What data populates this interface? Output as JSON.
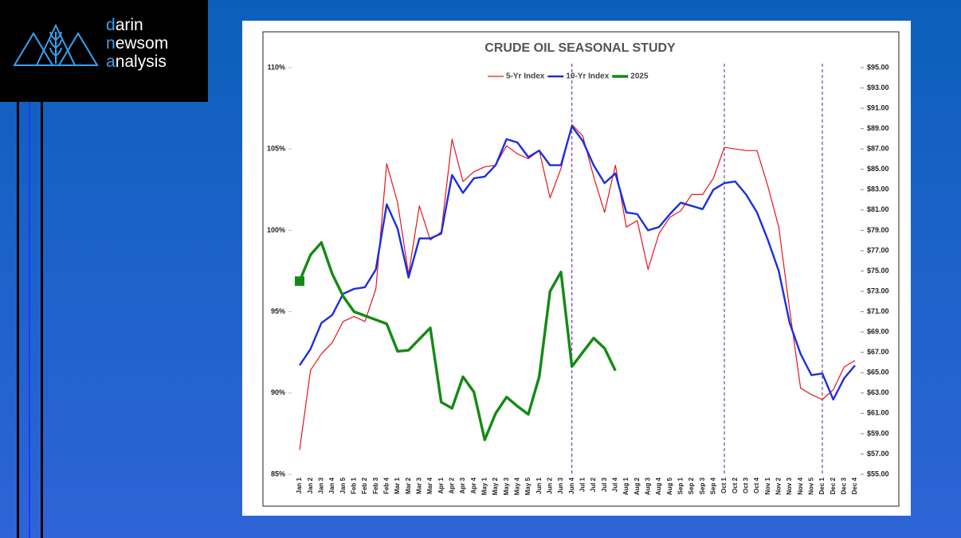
{
  "logo": {
    "lines": [
      "darin",
      "newsom",
      "analysis"
    ]
  },
  "chart_data": {
    "type": "line",
    "title": "CRUDE OIL SEASONAL STUDY",
    "categories": [
      "Jan 1",
      "Jan 2",
      "Jan 3",
      "Jan 4",
      "Jan 5",
      "Feb 1",
      "Feb 2",
      "Feb 3",
      "Feb 4",
      "Mar 1",
      "Mar 2",
      "Mar 3",
      "Mar 4",
      "Apr 1",
      "Apr 2",
      "Apr 3",
      "Apr 4",
      "May 1",
      "May 2",
      "May 3",
      "May 4",
      "May 5",
      "Jun 1",
      "Jun 2",
      "Jun 3",
      "Jun 4",
      "Jul 1",
      "Jul 2",
      "Jul 3",
      "Jul 4",
      "Aug 1",
      "Aug 2",
      "Aug 3",
      "Aug 4",
      "Aug 5",
      "Sep 1",
      "Sep 2",
      "Sep 3",
      "Sep 4",
      "Oct 1",
      "Oct 2",
      "Oct 3",
      "Oct 4",
      "Nov 1",
      "Nov 2",
      "Nov 3",
      "Nov 4",
      "Nov 5",
      "Dec 1",
      "Dec 2",
      "Dec 3",
      "Dec 4"
    ],
    "series": [
      {
        "name": "5-Yr Index",
        "color": "#e8141c",
        "values": [
          86.5,
          91.4,
          92.4,
          93.1,
          94.4,
          94.7,
          94.4,
          96.4,
          104.1,
          101.7,
          97.3,
          101.5,
          99.4,
          99.9,
          105.6,
          103.0,
          103.6,
          103.9,
          104.0,
          105.2,
          104.7,
          104.4,
          104.9,
          102.0,
          103.8,
          106.5,
          105.8,
          103.3,
          101.1,
          104.0,
          100.2,
          100.6,
          97.6,
          99.8,
          100.8,
          101.2,
          102.2,
          102.2,
          103.2,
          105.1,
          105.0,
          104.9,
          104.9,
          102.7,
          100.2,
          95.1,
          90.3,
          89.9,
          89.6,
          90.2,
          91.6,
          92.0
        ]
      },
      {
        "name": "10-Yr Index",
        "color": "#1a2fe0",
        "values": [
          91.7,
          92.7,
          94.3,
          94.8,
          96.1,
          96.4,
          96.5,
          97.6,
          101.6,
          100.1,
          97.1,
          99.5,
          99.5,
          99.8,
          103.4,
          102.3,
          103.2,
          103.3,
          104.0,
          105.6,
          105.4,
          104.5,
          104.9,
          104.0,
          104.0,
          106.4,
          105.5,
          104.0,
          102.9,
          103.5,
          101.1,
          101.0,
          100.0,
          100.2,
          101.0,
          101.7,
          101.5,
          101.3,
          102.5,
          102.9,
          103.0,
          102.2,
          101.1,
          99.4,
          97.5,
          94.3,
          92.4,
          91.1,
          91.2,
          89.6,
          90.9,
          91.7
        ]
      },
      {
        "name": "2025",
        "color": "#138a13",
        "axis": "y2",
        "values": [
          74.0,
          76.6,
          77.8,
          74.7,
          72.5,
          71.0,
          70.6,
          70.2,
          69.8,
          67.1,
          67.2,
          68.3,
          69.4,
          62.1,
          61.5,
          64.6,
          63.1,
          58.4,
          61.0,
          62.6,
          61.7,
          60.9,
          64.6,
          73.0,
          74.9,
          65.6,
          67.0,
          68.4,
          67.4,
          65.2,
          null,
          null,
          null,
          null,
          null,
          null,
          null,
          null,
          null,
          null,
          null,
          null,
          null,
          null,
          null,
          null,
          null,
          null,
          null,
          null,
          null,
          null
        ]
      }
    ],
    "ylim": [
      85,
      110
    ],
    "yticks": [
      {
        "value": 85,
        "label": "85%"
      },
      {
        "value": 90,
        "label": "90%"
      },
      {
        "value": 95,
        "label": "95%"
      },
      {
        "value": 100,
        "label": "100%"
      },
      {
        "value": 105,
        "label": "105%"
      },
      {
        "value": 110,
        "label": "110%"
      }
    ],
    "y2lim": [
      55,
      95
    ],
    "y2ticks": [
      {
        "value": 55,
        "label": "$55.00"
      },
      {
        "value": 57,
        "label": "$57.00"
      },
      {
        "value": 59,
        "label": "$59.00"
      },
      {
        "value": 61,
        "label": "$61.00"
      },
      {
        "value": 63,
        "label": "$63.00"
      },
      {
        "value": 65,
        "label": "$65.00"
      },
      {
        "value": 67,
        "label": "$67.00"
      },
      {
        "value": 69,
        "label": "$69.00"
      },
      {
        "value": 71,
        "label": "$71.00"
      },
      {
        "value": 73,
        "label": "$73.00"
      },
      {
        "value": 75,
        "label": "$75.00"
      },
      {
        "value": 77,
        "label": "$77.00"
      },
      {
        "value": 79,
        "label": "$79.00"
      },
      {
        "value": 81,
        "label": "$81.00"
      },
      {
        "value": 83,
        "label": "$83.00"
      },
      {
        "value": 85,
        "label": "$85.00"
      },
      {
        "value": 87,
        "label": "$87.00"
      },
      {
        "value": 89,
        "label": "$89.00"
      },
      {
        "value": 91,
        "label": "$91.00"
      },
      {
        "value": 93,
        "label": "$93.00"
      },
      {
        "value": 95,
        "label": "$95.00"
      }
    ],
    "vertical_lines_at": [
      "Jun 4",
      "Oct 1",
      "Dec 1"
    ],
    "vertical_line_color": "#7a3fb0",
    "grid": false,
    "legend": "top"
  }
}
